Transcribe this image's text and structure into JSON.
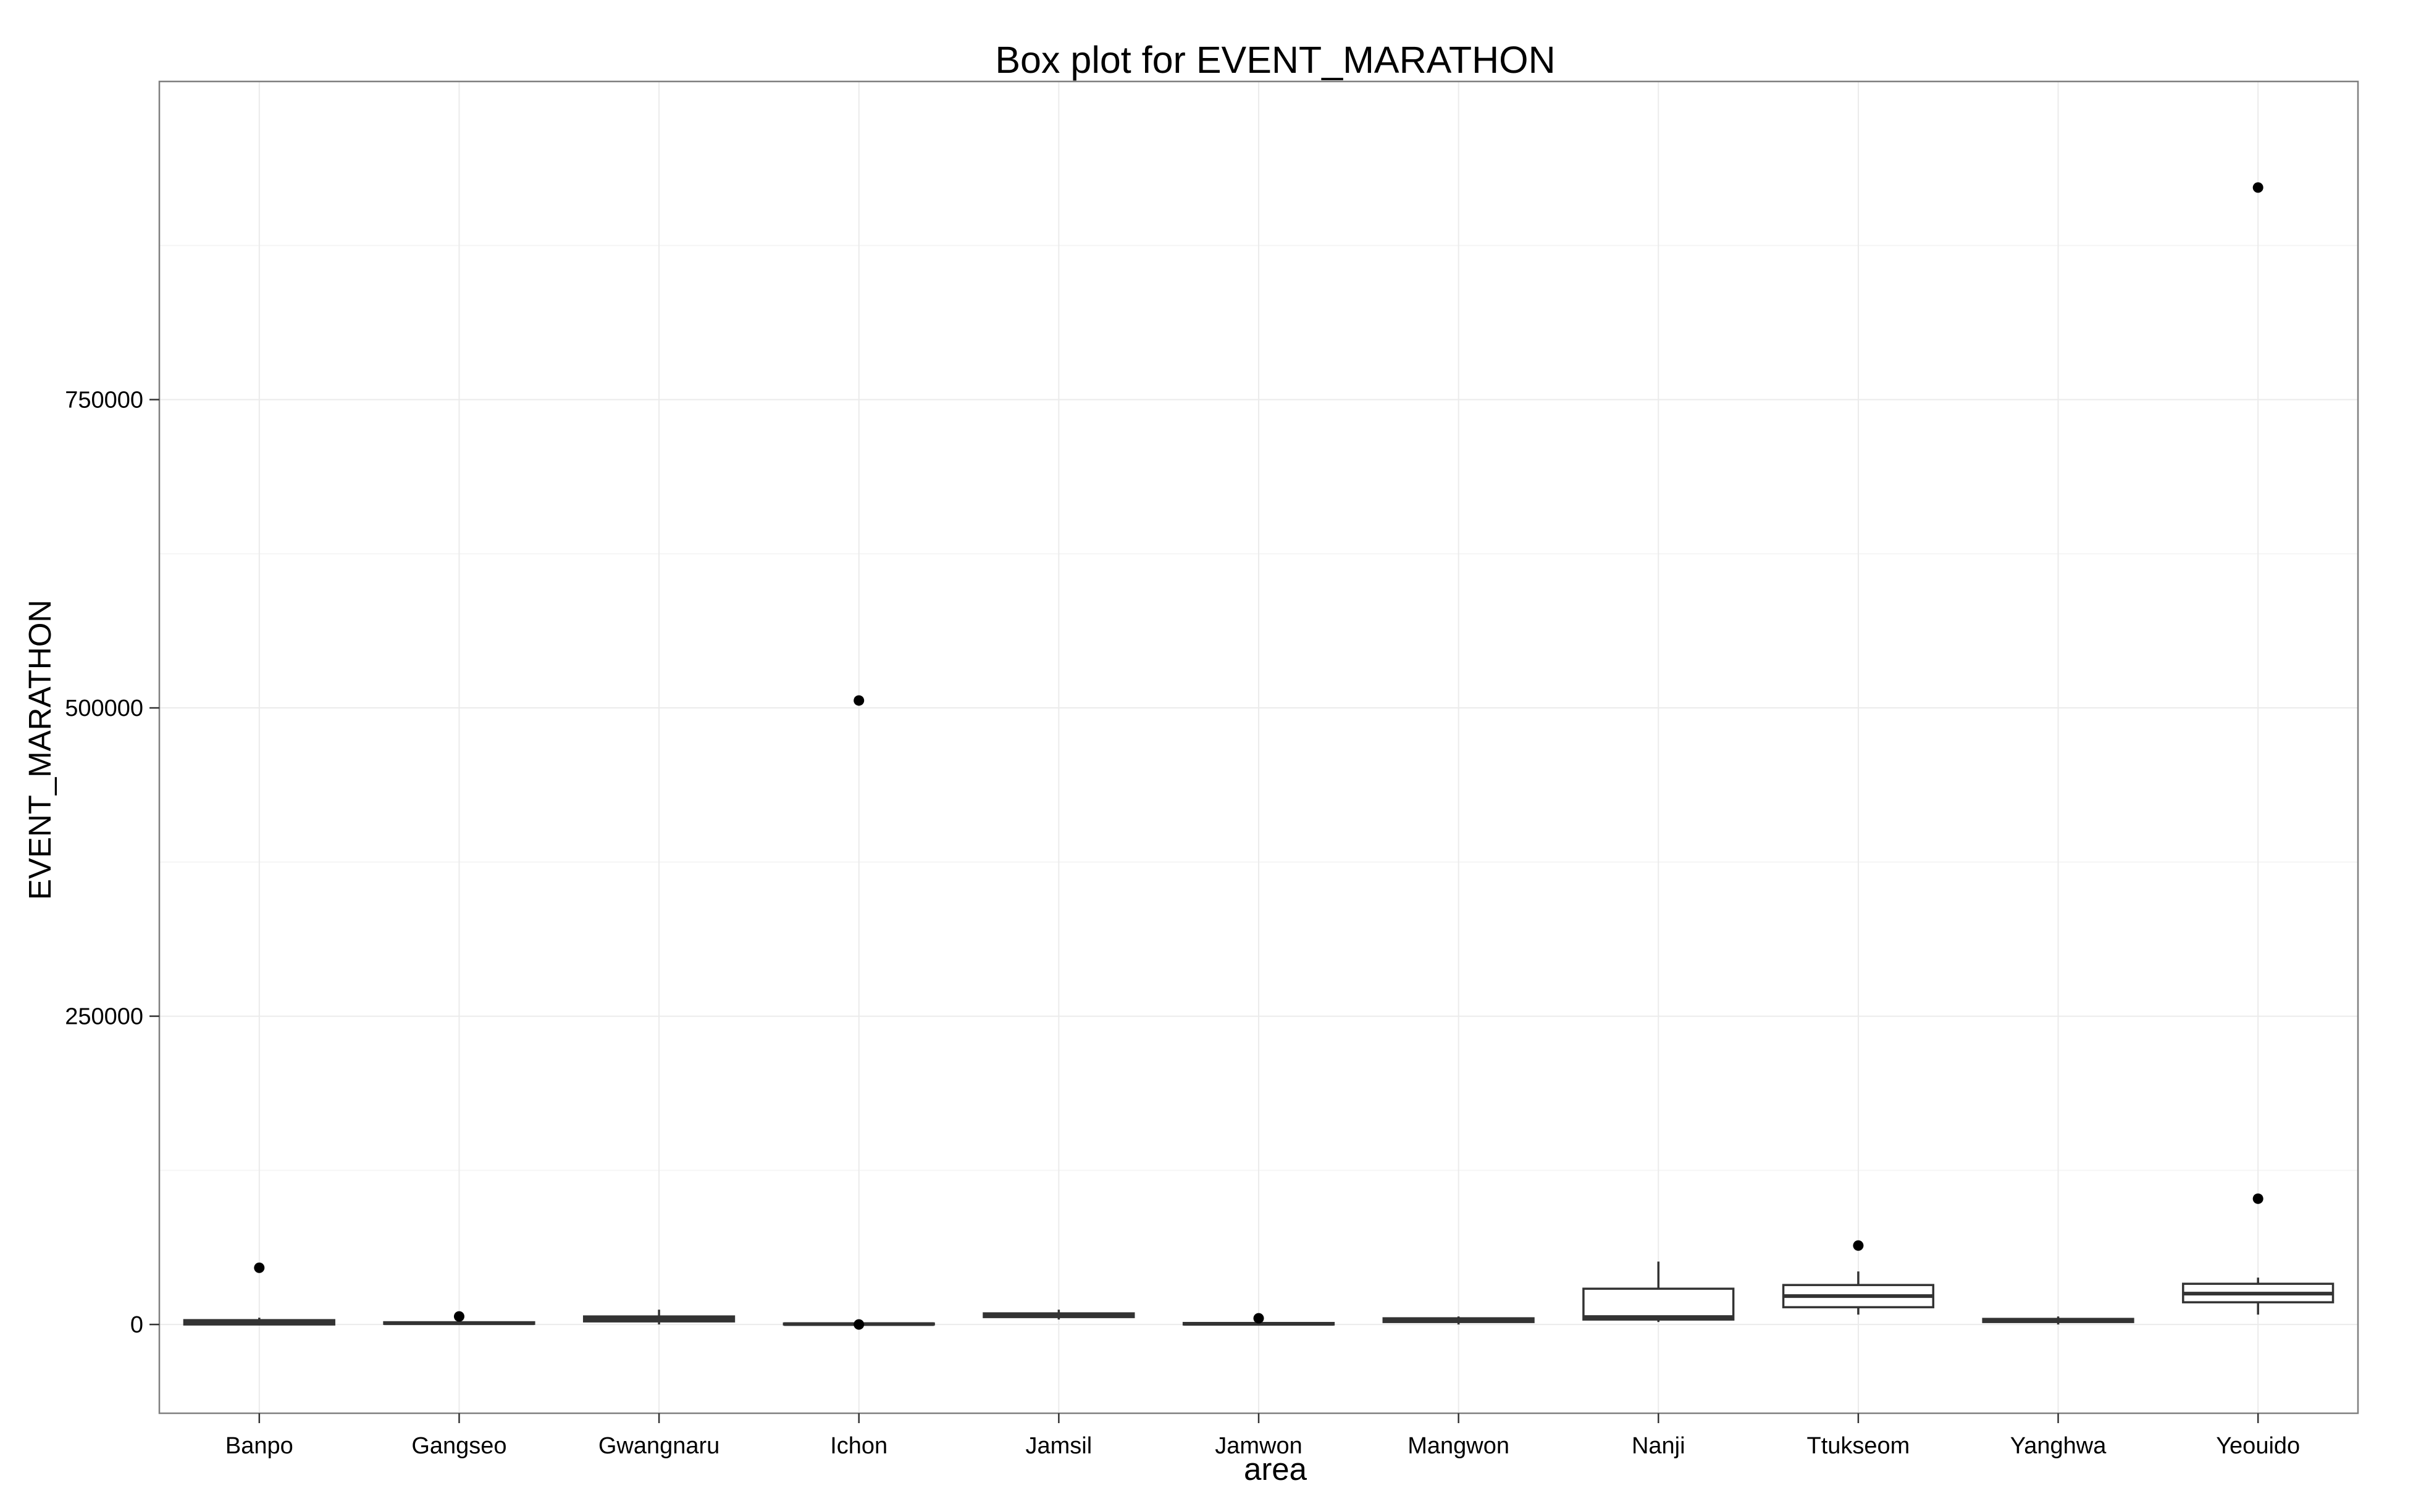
{
  "chart_data": {
    "type": "box",
    "title": "Box plot for EVENT_MARATHON",
    "xlabel": "area",
    "ylabel": "EVENT_MARATHON",
    "ylim": [
      -72000,
      1008000
    ],
    "y_ticks": [
      0,
      250000,
      500000,
      750000
    ],
    "y_tick_labels": [
      "0",
      "250000",
      "500000",
      "750000"
    ],
    "grid": true,
    "theme": "bw",
    "categories": [
      "Banpo",
      "Gangseo",
      "Gwangnaru",
      "Ichon",
      "Jamsil",
      "Jamwon",
      "Mangwon",
      "Nanji",
      "Ttukseom",
      "Yanghwa",
      "Yeouido"
    ],
    "boxes": [
      {
        "area": "Banpo",
        "whisker_low": 0,
        "q1": 0,
        "median": 1500,
        "q3": 3500,
        "whisker_high": 5500,
        "outliers": [
          46000
        ]
      },
      {
        "area": "Gangseo",
        "whisker_low": 0,
        "q1": 500,
        "median": 1000,
        "q3": 1800,
        "whisker_high": 3000,
        "outliers": [
          6500
        ]
      },
      {
        "area": "Gwangnaru",
        "whisker_low": 0,
        "q1": 2500,
        "median": 4500,
        "q3": 6500,
        "whisker_high": 12000,
        "outliers": []
      },
      {
        "area": "Ichon",
        "whisker_low": 0,
        "q1": 0,
        "median": 300,
        "q3": 800,
        "whisker_high": 1500,
        "outliers": [
          0,
          506000
        ]
      },
      {
        "area": "Jamsil",
        "whisker_low": 4000,
        "q1": 6000,
        "median": 7500,
        "q3": 9000,
        "whisker_high": 12000,
        "outliers": []
      },
      {
        "area": "Jamwon",
        "whisker_low": 0,
        "q1": 0,
        "median": 500,
        "q3": 1200,
        "whisker_high": 2000,
        "outliers": [
          5000
        ]
      },
      {
        "area": "Mangwon",
        "whisker_low": 0,
        "q1": 2000,
        "median": 3500,
        "q3": 5000,
        "whisker_high": 6500,
        "outliers": []
      },
      {
        "area": "Nanji",
        "whisker_low": 2000,
        "q1": 4000,
        "median": 6000,
        "q3": 29000,
        "whisker_high": 51000,
        "outliers": []
      },
      {
        "area": "Ttukseom",
        "whisker_low": 8000,
        "q1": 14000,
        "median": 23000,
        "q3": 32000,
        "whisker_high": 43000,
        "outliers": [
          64000
        ]
      },
      {
        "area": "Yanghwa",
        "whisker_low": 0,
        "q1": 2000,
        "median": 3500,
        "q3": 4500,
        "whisker_high": 6500,
        "outliers": []
      },
      {
        "area": "Yeouido",
        "whisker_low": 8000,
        "q1": 18000,
        "median": 25000,
        "q3": 33000,
        "whisker_high": 38000,
        "outliers": [
          102000,
          922000
        ]
      }
    ],
    "colors": {
      "box_fill": "#ffffff",
      "box_line": "#333333",
      "grid_major": "#ebebeb",
      "grid_minor": "#f5f5f5",
      "panel_border": "#7f7f7f",
      "point": "#000000"
    }
  }
}
